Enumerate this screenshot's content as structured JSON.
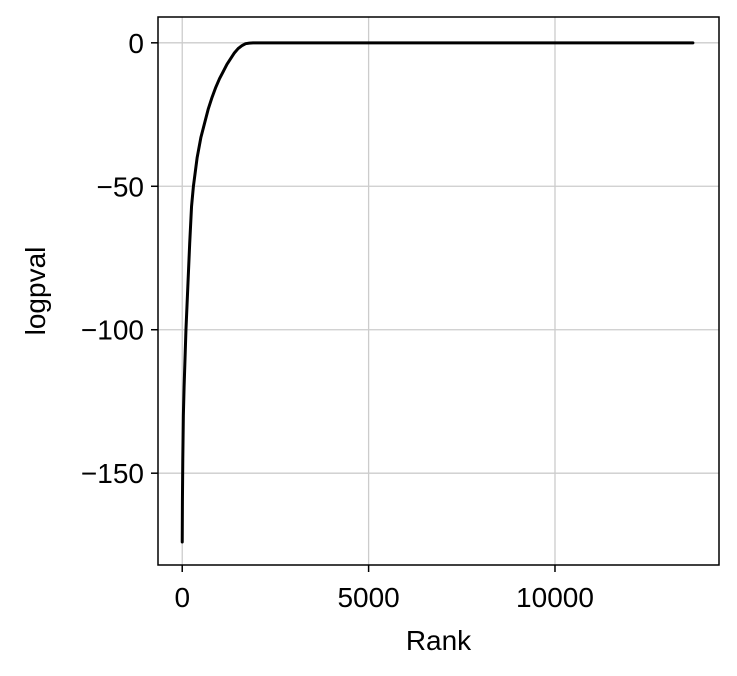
{
  "chart_data": {
    "type": "line",
    "title": "",
    "xlabel": "Rank",
    "ylabel": "logpval",
    "xlim": [
      -650,
      14400
    ],
    "ylim": [
      -182,
      9
    ],
    "grid": true,
    "line_color": "#000000",
    "grid_color": "#cccccc",
    "x_ticks": [
      0,
      5000,
      10000
    ],
    "x_tick_labels": [
      "0",
      "5000",
      "10000"
    ],
    "y_ticks": [
      0,
      -50,
      -100,
      -150
    ],
    "y_tick_labels": [
      "0",
      "−50",
      "−100",
      "−150"
    ],
    "series": [
      {
        "x": [
          0,
          5,
          15,
          30,
          50,
          80,
          100,
          150,
          200,
          250,
          300,
          350,
          400,
          500,
          600,
          700,
          800,
          900,
          1000,
          1100,
          1200,
          1300,
          1400,
          1500,
          1600,
          1700,
          1800,
          1900,
          2000,
          2200,
          2500,
          3000,
          5000,
          8000,
          10000,
          12000,
          13700
        ],
        "y": [
          -174,
          -160,
          -145,
          -130,
          -120,
          -108,
          -100,
          -85,
          -70,
          -57,
          -50,
          -45,
          -40,
          -33,
          -28,
          -23,
          -19,
          -15.5,
          -12.5,
          -10,
          -7.5,
          -5.5,
          -3.5,
          -2,
          -1,
          -0.3,
          -0.1,
          -0.02,
          0,
          0,
          0,
          0,
          0,
          0,
          0,
          0,
          0
        ]
      }
    ]
  }
}
